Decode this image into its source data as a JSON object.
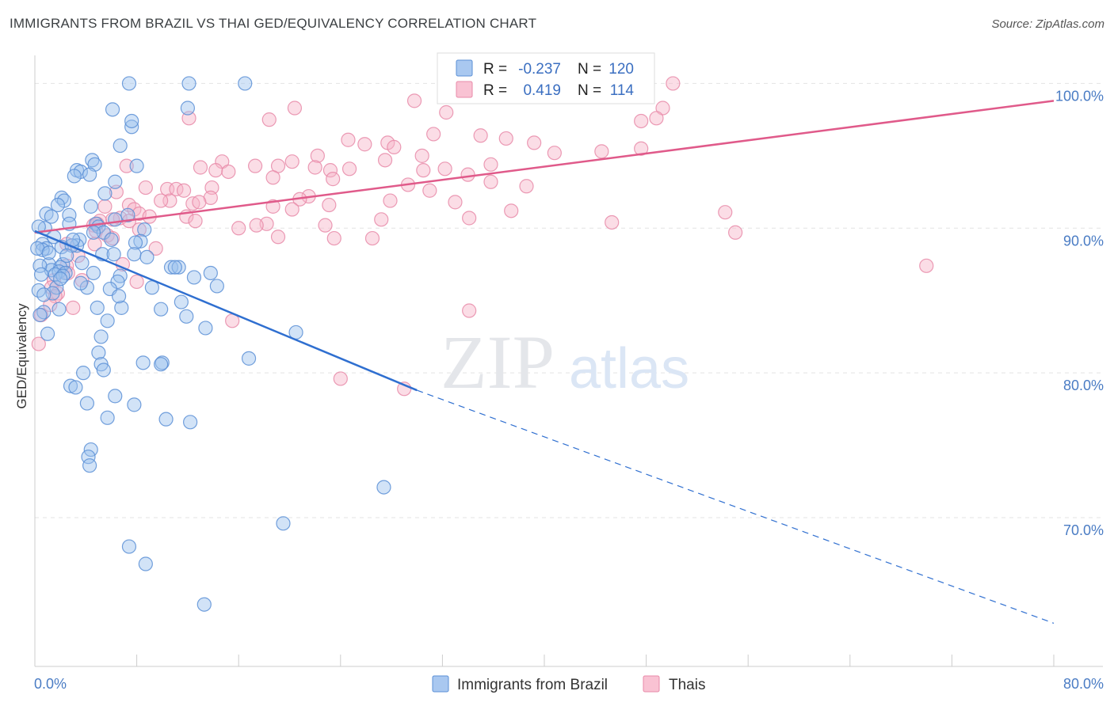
{
  "title": "IMMIGRANTS FROM BRAZIL VS THAI GED/EQUIVALENCY CORRELATION CHART",
  "source": "Source: ZipAtlas.com",
  "watermark": {
    "zip": "ZIP",
    "atlas": "atlas"
  },
  "colors": {
    "brazil_fill": "#9cc0ee",
    "brazil_stroke": "#5a8fd6",
    "brazil_line": "#2f6fd0",
    "thai_fill": "#f7b3c8",
    "thai_stroke": "#e88aa8",
    "thai_line": "#e05a8a",
    "grid": "#e3e3e3",
    "tick_text": "#4a7cc4"
  },
  "legend": {
    "r_label": "R =",
    "n_label": "N =",
    "brazil": {
      "r": "-0.237",
      "n": "120"
    },
    "thai": {
      "r": "0.419",
      "n": "114"
    }
  },
  "chart_data": {
    "type": "scatter",
    "title": "IMMIGRANTS FROM BRAZIL VS THAI GED/EQUIVALENCY CORRELATION CHART",
    "xlabel": "",
    "ylabel": "GED/Equivalency",
    "xlim": [
      0,
      80
    ],
    "ylim": [
      59.5,
      101.5
    ],
    "x_tick_labels": [
      "0.0%",
      "80.0%"
    ],
    "y_ticks": [
      70,
      80,
      90,
      100
    ],
    "y_tick_labels": [
      "70.0%",
      "80.0%",
      "90.0%",
      "100.0%"
    ],
    "grid": true,
    "legend_position": "top-center",
    "series": [
      {
        "name": "Immigrants from Brazil",
        "r": -0.237,
        "n": 120,
        "trend": {
          "x": [
            0,
            30
          ],
          "y": [
            89.8,
            78.8
          ]
        },
        "trend_extension": {
          "x": [
            30,
            80
          ],
          "y": [
            78.8,
            62.7
          ]
        },
        "points": [
          [
            7.4,
            100
          ],
          [
            12.1,
            100
          ],
          [
            16.5,
            100
          ],
          [
            6.1,
            98.2
          ],
          [
            12,
            98.3
          ],
          [
            7.6,
            97
          ],
          [
            7.6,
            97.4
          ],
          [
            6.7,
            95.7
          ],
          [
            4.5,
            94.7
          ],
          [
            4.7,
            94.4
          ],
          [
            8,
            94.3
          ],
          [
            3.3,
            94
          ],
          [
            3.6,
            93.9
          ],
          [
            4.3,
            93.7
          ],
          [
            3.1,
            93.6
          ],
          [
            6.3,
            93.2
          ],
          [
            5.5,
            92.4
          ],
          [
            2.1,
            92.1
          ],
          [
            2.3,
            91.9
          ],
          [
            1.8,
            91.6
          ],
          [
            4.4,
            91.5
          ],
          [
            0.9,
            91
          ],
          [
            2.7,
            90.9
          ],
          [
            7.3,
            90.9
          ],
          [
            6.3,
            90.6
          ],
          [
            4.8,
            90.3
          ],
          [
            5,
            90.1
          ],
          [
            2.7,
            90.3
          ],
          [
            0.8,
            90
          ],
          [
            0.3,
            90.1
          ],
          [
            8.6,
            89.9
          ],
          [
            5.4,
            89.7
          ],
          [
            4.6,
            89.7
          ],
          [
            1.5,
            89.4
          ],
          [
            3.5,
            89.2
          ],
          [
            6,
            89.2
          ],
          [
            8.3,
            89.1
          ],
          [
            7.9,
            89
          ],
          [
            0.6,
            88.9
          ],
          [
            3.3,
            88.8
          ],
          [
            2.1,
            88.7
          ],
          [
            2.9,
            88.8
          ],
          [
            0.9,
            88.6
          ],
          [
            0.6,
            88.5
          ],
          [
            5.3,
            88.2
          ],
          [
            7.8,
            88.2
          ],
          [
            6.2,
            88.2
          ],
          [
            3.7,
            87.6
          ],
          [
            1.1,
            87.5
          ],
          [
            2.2,
            87.5
          ],
          [
            2,
            87.3
          ],
          [
            10.7,
            87.3
          ],
          [
            11.3,
            87.3
          ],
          [
            11,
            87.3
          ],
          [
            1.3,
            87.1
          ],
          [
            1.9,
            87
          ],
          [
            2.4,
            86.9
          ],
          [
            1.6,
            86.8
          ],
          [
            4.6,
            86.9
          ],
          [
            13.8,
            86.9
          ],
          [
            2.2,
            86.7
          ],
          [
            6.7,
            86.7
          ],
          [
            12.5,
            86.6
          ],
          [
            6.5,
            86.3
          ],
          [
            9.2,
            85.9
          ],
          [
            14.3,
            86
          ],
          [
            1.7,
            85.9
          ],
          [
            4.1,
            85.9
          ],
          [
            5.9,
            85.8
          ],
          [
            0.3,
            85.7
          ],
          [
            1.4,
            85.5
          ],
          [
            0.7,
            85.4
          ],
          [
            4.9,
            84.5
          ],
          [
            6.8,
            84.5
          ],
          [
            9.9,
            84.4
          ],
          [
            0.7,
            84.2
          ],
          [
            0.4,
            84
          ],
          [
            1.9,
            84.4
          ],
          [
            11.9,
            83.9
          ],
          [
            5.7,
            83.6
          ],
          [
            13.4,
            83.1
          ],
          [
            20.5,
            82.8
          ],
          [
            1,
            82.7
          ],
          [
            5.2,
            82.5
          ],
          [
            5,
            81.4
          ],
          [
            16.8,
            81
          ],
          [
            8.5,
            80.7
          ],
          [
            10,
            80.7
          ],
          [
            9.9,
            80.6
          ],
          [
            5.2,
            80.6
          ],
          [
            5.4,
            80.2
          ],
          [
            3.8,
            80
          ],
          [
            2.8,
            79.1
          ],
          [
            3.2,
            79
          ],
          [
            6.3,
            78.4
          ],
          [
            4.1,
            77.9
          ],
          [
            7.8,
            77.8
          ],
          [
            10.3,
            76.8
          ],
          [
            12.2,
            76.6
          ],
          [
            5.7,
            76.9
          ],
          [
            4.4,
            74.7
          ],
          [
            4.2,
            74.2
          ],
          [
            4.3,
            73.6
          ],
          [
            27.4,
            72.1
          ],
          [
            19.5,
            69.6
          ],
          [
            7.4,
            68
          ],
          [
            8.7,
            66.8
          ],
          [
            13.3,
            64
          ],
          [
            0.2,
            88.6
          ],
          [
            3,
            89.2
          ],
          [
            1.3,
            90.8
          ],
          [
            0.4,
            87.4
          ],
          [
            2,
            86.5
          ],
          [
            8.8,
            88
          ],
          [
            6.6,
            85.3
          ],
          [
            1.1,
            88.3
          ],
          [
            0.5,
            86.8
          ],
          [
            3.6,
            86.2
          ],
          [
            2.5,
            88.1
          ],
          [
            11.5,
            84.9
          ]
        ]
      },
      {
        "name": "Thais",
        "r": 0.419,
        "n": 114,
        "trend": {
          "x": [
            0,
            80
          ],
          "y": [
            89.7,
            98.8
          ]
        },
        "points": [
          [
            50.1,
            100
          ],
          [
            29.8,
            98.8
          ],
          [
            49.3,
            98.3
          ],
          [
            20.4,
            98.3
          ],
          [
            32.3,
            98
          ],
          [
            47.6,
            97.4
          ],
          [
            48.8,
            97.6
          ],
          [
            12.1,
            97.6
          ],
          [
            18.4,
            97.5
          ],
          [
            31.3,
            96.5
          ],
          [
            35,
            96.4
          ],
          [
            24.6,
            96.1
          ],
          [
            37,
            96.2
          ],
          [
            27.7,
            95.9
          ],
          [
            39.2,
            95.9
          ],
          [
            25.9,
            95.8
          ],
          [
            28.2,
            95.6
          ],
          [
            40.8,
            95.2
          ],
          [
            44.5,
            95.3
          ],
          [
            47.6,
            95.5
          ],
          [
            22.2,
            95
          ],
          [
            30.4,
            95
          ],
          [
            27.5,
            94.7
          ],
          [
            14.7,
            94.6
          ],
          [
            20.2,
            94.6
          ],
          [
            22,
            94.2
          ],
          [
            24.7,
            94.1
          ],
          [
            35.8,
            94.4
          ],
          [
            17.3,
            94.3
          ],
          [
            19.1,
            94.3
          ],
          [
            13,
            94.2
          ],
          [
            14.2,
            94
          ],
          [
            23.2,
            94
          ],
          [
            32.2,
            94.1
          ],
          [
            7.2,
            94.3
          ],
          [
            30.5,
            94
          ],
          [
            15.2,
            93.9
          ],
          [
            34,
            93.7
          ],
          [
            18.7,
            93.5
          ],
          [
            23.4,
            93.4
          ],
          [
            35.8,
            93.2
          ],
          [
            29.3,
            93
          ],
          [
            13.9,
            92.8
          ],
          [
            8.7,
            92.8
          ],
          [
            10.4,
            92.7
          ],
          [
            11.1,
            92.7
          ],
          [
            38.6,
            92.9
          ],
          [
            11.7,
            92.6
          ],
          [
            31,
            92.6
          ],
          [
            21.5,
            92.2
          ],
          [
            6.4,
            92.5
          ],
          [
            13.8,
            92.1
          ],
          [
            20.8,
            92
          ],
          [
            27.9,
            91.9
          ],
          [
            10.6,
            91.9
          ],
          [
            9.9,
            91.9
          ],
          [
            12.4,
            91.7
          ],
          [
            33,
            91.8
          ],
          [
            7.4,
            91.6
          ],
          [
            5.5,
            91.5
          ],
          [
            18.7,
            91.5
          ],
          [
            23.1,
            91.6
          ],
          [
            12.9,
            91.8
          ],
          [
            7.8,
            91.3
          ],
          [
            20.2,
            91.3
          ],
          [
            37.4,
            91.2
          ],
          [
            8.2,
            91
          ],
          [
            54.2,
            91.1
          ],
          [
            6.7,
            90.7
          ],
          [
            27.2,
            90.6
          ],
          [
            9,
            90.8
          ],
          [
            11.9,
            90.8
          ],
          [
            34.1,
            90.7
          ],
          [
            12.6,
            90.5
          ],
          [
            6.1,
            90.6
          ],
          [
            5.1,
            90.5
          ],
          [
            18.2,
            90.3
          ],
          [
            17.4,
            90.2
          ],
          [
            16,
            90
          ],
          [
            22.8,
            90.2
          ],
          [
            45.3,
            90.4
          ],
          [
            7.4,
            90.5
          ],
          [
            4.6,
            90.2
          ],
          [
            4.9,
            90.3
          ],
          [
            55,
            89.7
          ],
          [
            4.8,
            89.8
          ],
          [
            5.7,
            89.5
          ],
          [
            19.1,
            89.4
          ],
          [
            23.5,
            89.3
          ],
          [
            26.5,
            89.3
          ],
          [
            6.1,
            89.3
          ],
          [
            4.7,
            88.9
          ],
          [
            2.5,
            88.9
          ],
          [
            9.5,
            88.6
          ],
          [
            70,
            87.4
          ],
          [
            2.5,
            87.4
          ],
          [
            2.6,
            86.9
          ],
          [
            1.5,
            86.4
          ],
          [
            3.7,
            86.4
          ],
          [
            8,
            86.3
          ],
          [
            1.3,
            85.9
          ],
          [
            1.8,
            85.5
          ],
          [
            1.6,
            85.3
          ],
          [
            0.5,
            84
          ],
          [
            3,
            84.5
          ],
          [
            34.1,
            84.3
          ],
          [
            15.5,
            83.6
          ],
          [
            24,
            79.6
          ],
          [
            29,
            78.9
          ],
          [
            0.3,
            82
          ],
          [
            1.2,
            84.7
          ],
          [
            3.4,
            88.1
          ],
          [
            6.9,
            87.5
          ],
          [
            8.2,
            89.9
          ]
        ]
      }
    ]
  },
  "bottom_legend": {
    "brazil": "Immigrants from Brazil",
    "thai": "Thais"
  }
}
